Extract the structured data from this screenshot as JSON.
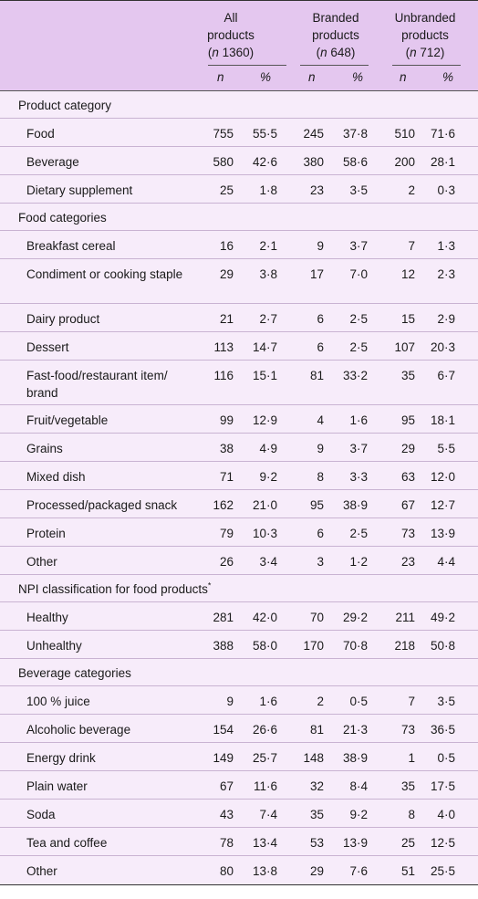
{
  "header": {
    "groups": [
      {
        "line1": "All",
        "line2": "products",
        "n_prefix": "n",
        "n_value": " 1360"
      },
      {
        "line1": "Branded",
        "line2": "products",
        "n_prefix": "n",
        "n_value": " 648"
      },
      {
        "line1": "Unbranded",
        "line2": "products",
        "n_prefix": "n",
        "n_value": " 712"
      }
    ],
    "sub": [
      "n",
      "%",
      "n",
      "%",
      "n",
      "%"
    ]
  },
  "sections": [
    {
      "title": "Product category",
      "rows": [
        {
          "label": "Food",
          "v": [
            "755",
            "55·5",
            "245",
            "37·8",
            "510",
            "71·6"
          ]
        },
        {
          "label": "Beverage",
          "v": [
            "580",
            "42·6",
            "380",
            "58·6",
            "200",
            "28·1"
          ]
        },
        {
          "label": "Dietary supplement",
          "v": [
            "25",
            "1·8",
            "23",
            "3·5",
            "2",
            "0·3"
          ]
        }
      ]
    },
    {
      "title": "Food categories",
      "rows": [
        {
          "label": "Breakfast cereal",
          "v": [
            "16",
            "2·1",
            "9",
            "3·7",
            "7",
            "1·3"
          ]
        },
        {
          "label": "Condiment or cooking staple",
          "v": [
            "29",
            "3·8",
            "17",
            "7·0",
            "12",
            "2·3"
          ]
        },
        {
          "label": "Dairy product",
          "v": [
            "21",
            "2·7",
            "6",
            "2·5",
            "15",
            "2·9"
          ]
        },
        {
          "label": "Dessert",
          "v": [
            "113",
            "14·7",
            "6",
            "2·5",
            "107",
            "20·3"
          ]
        },
        {
          "label": "Fast-food/restaurant item/ brand",
          "v": [
            "116",
            "15·1",
            "81",
            "33·2",
            "35",
            "6·7"
          ]
        },
        {
          "label": "Fruit/vegetable",
          "v": [
            "99",
            "12·9",
            "4",
            "1·6",
            "95",
            "18·1"
          ]
        },
        {
          "label": "Grains",
          "v": [
            "38",
            "4·9",
            "9",
            "3·7",
            "29",
            "5·5"
          ]
        },
        {
          "label": "Mixed dish",
          "v": [
            "71",
            "9·2",
            "8",
            "3·3",
            "63",
            "12·0"
          ]
        },
        {
          "label": "Processed/packaged snack",
          "v": [
            "162",
            "21·0",
            "95",
            "38·9",
            "67",
            "12·7"
          ]
        },
        {
          "label": "Protein",
          "v": [
            "79",
            "10·3",
            "6",
            "2·5",
            "73",
            "13·9"
          ]
        },
        {
          "label": "Other",
          "v": [
            "26",
            "3·4",
            "3",
            "1·2",
            "23",
            "4·4"
          ]
        }
      ]
    },
    {
      "title": "NPI classification for food products",
      "title_sup": "*",
      "rows": [
        {
          "label": "Healthy",
          "v": [
            "281",
            "42·0",
            "70",
            "29·2",
            "211",
            "49·2"
          ]
        },
        {
          "label": "Unhealthy",
          "v": [
            "388",
            "58·0",
            "170",
            "70·8",
            "218",
            "50·8"
          ]
        }
      ]
    },
    {
      "title": "Beverage categories",
      "rows": [
        {
          "label": "100 % juice",
          "v": [
            "9",
            "1·6",
            "2",
            "0·5",
            "7",
            "3·5"
          ]
        },
        {
          "label": "Alcoholic beverage",
          "v": [
            "154",
            "26·6",
            "81",
            "21·3",
            "73",
            "36·5"
          ]
        },
        {
          "label": "Energy drink",
          "v": [
            "149",
            "25·7",
            "148",
            "38·9",
            "1",
            "0·5"
          ]
        },
        {
          "label": "Plain water",
          "v": [
            "67",
            "11·6",
            "32",
            "8·4",
            "35",
            "17·5"
          ]
        },
        {
          "label": "Soda",
          "v": [
            "43",
            "7·4",
            "35",
            "9·2",
            "8",
            "4·0"
          ]
        },
        {
          "label": "Tea and coffee",
          "v": [
            "78",
            "13·4",
            "53",
            "13·9",
            "25",
            "12·5"
          ]
        },
        {
          "label": "Other",
          "v": [
            "80",
            "13·8",
            "29",
            "7·6",
            "51",
            "25·5"
          ]
        }
      ]
    }
  ]
}
